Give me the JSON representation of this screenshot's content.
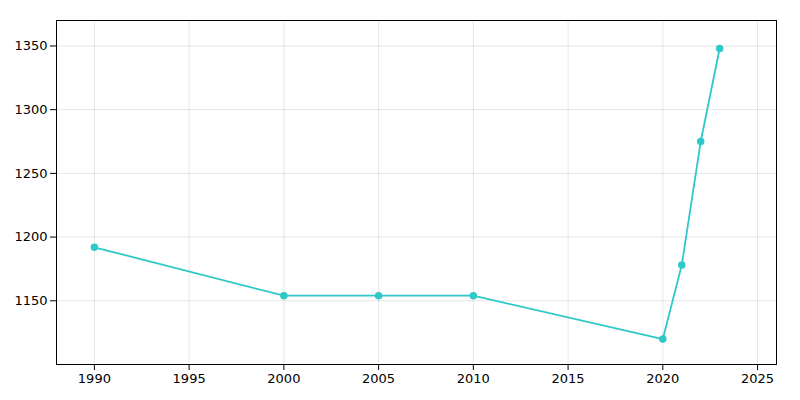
{
  "chart_data": {
    "type": "line",
    "x": [
      1990,
      2000,
      2005,
      2010,
      2020,
      2021,
      2022,
      2023
    ],
    "values": [
      1192,
      1154,
      1154,
      1154,
      1120,
      1178,
      1275,
      1348
    ],
    "color": "#2ec8c8",
    "marker": "circle",
    "xlim": [
      1988,
      2026
    ],
    "ylim": [
      1100,
      1370
    ],
    "xticks": [
      1990,
      1995,
      2000,
      2005,
      2010,
      2015,
      2020,
      2025
    ],
    "yticks": [
      1150,
      1200,
      1250,
      1300,
      1350
    ],
    "grid": true
  }
}
